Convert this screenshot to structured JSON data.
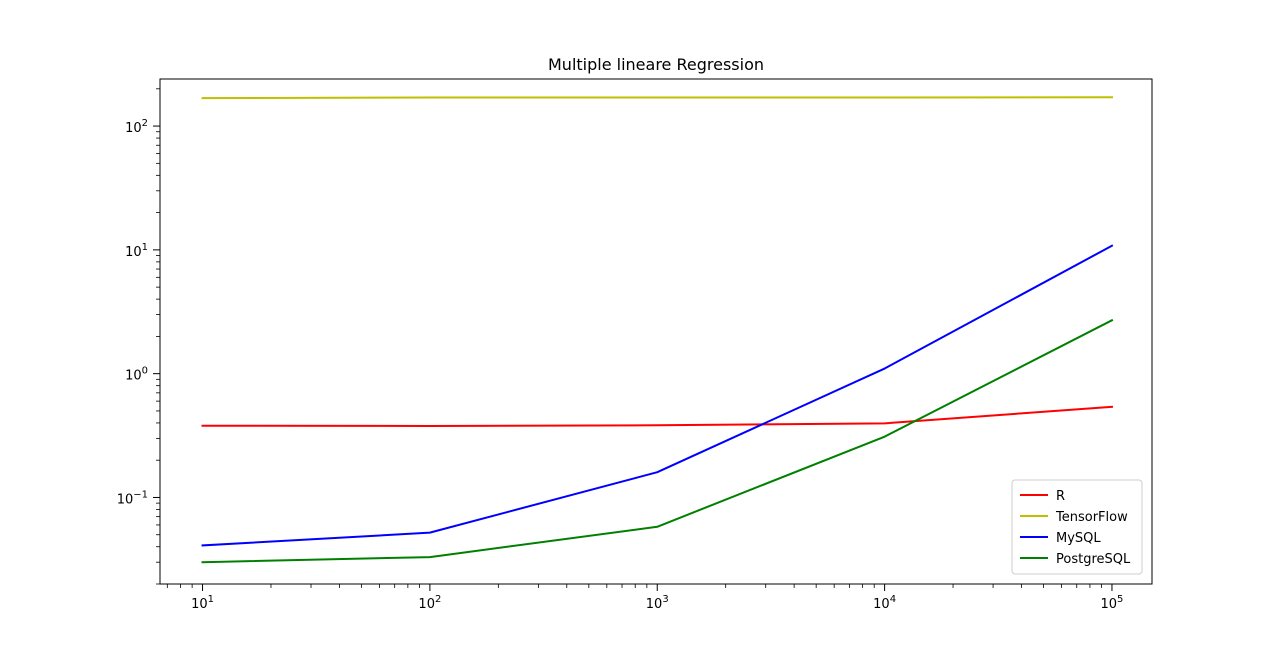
{
  "chart_data": {
    "type": "line",
    "title": "Multiple lineare Regression",
    "xlabel": "",
    "ylabel": "",
    "xscale": "log",
    "yscale": "log",
    "xlim": [
      6.5,
      150000
    ],
    "ylim": [
      0.02,
      240
    ],
    "x": [
      10,
      100,
      1000,
      10000,
      100000
    ],
    "x_ticks": [
      {
        "value": 10,
        "base": "10",
        "exp": "1"
      },
      {
        "value": 100,
        "base": "10",
        "exp": "2"
      },
      {
        "value": 1000,
        "base": "10",
        "exp": "3"
      },
      {
        "value": 10000,
        "base": "10",
        "exp": "4"
      },
      {
        "value": 100000,
        "base": "10",
        "exp": "5"
      }
    ],
    "y_ticks": [
      {
        "value": 0.1,
        "base": "10",
        "exp": "−1"
      },
      {
        "value": 1,
        "base": "10",
        "exp": "0"
      },
      {
        "value": 10,
        "base": "10",
        "exp": "1"
      },
      {
        "value": 100,
        "base": "10",
        "exp": "2"
      }
    ],
    "series": [
      {
        "name": "R",
        "color": "#ff0000",
        "values": [
          0.38,
          0.378,
          0.383,
          0.397,
          0.54
        ]
      },
      {
        "name": "TensorFlow",
        "color": "#bfbf00",
        "values": [
          168,
          170,
          170,
          170,
          171
        ]
      },
      {
        "name": "MySQL",
        "color": "#0000ff",
        "values": [
          0.041,
          0.052,
          0.16,
          1.1,
          10.8
        ]
      },
      {
        "name": "PostgreSQL",
        "color": "#008000",
        "values": [
          0.03,
          0.033,
          0.058,
          0.31,
          2.7
        ]
      }
    ],
    "grid": false,
    "legend": "lower-right"
  }
}
